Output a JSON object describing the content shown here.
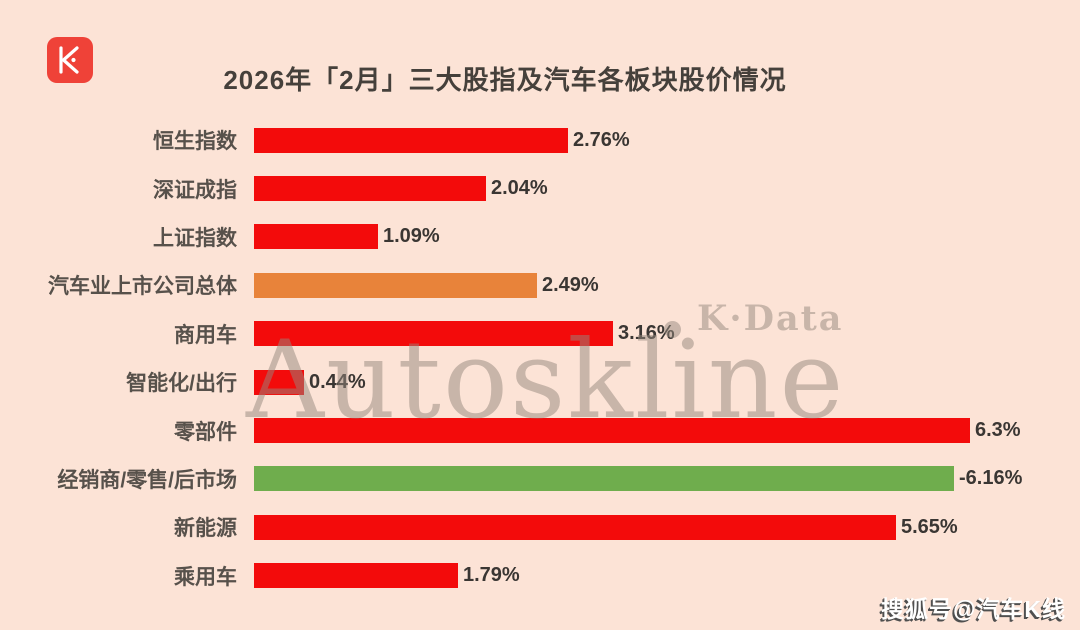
{
  "header": {
    "title": "2026年「2月」三大股指及汽车各板块股价情况"
  },
  "logo": {
    "name": "汽车K线 K logo"
  },
  "chart_data": {
    "type": "bar",
    "orientation": "horizontal",
    "title": "2026年「2月」三大股指及汽车各板块股价情况",
    "categories": [
      "恒生指数",
      "深证成指",
      "上证指数",
      "汽车业上市公司总体",
      "商用车",
      "智能化/出行",
      "零部件",
      "经销商/零售/后市场",
      "新能源",
      "乘用车"
    ],
    "values": [
      2.76,
      2.04,
      1.09,
      2.49,
      3.16,
      0.44,
      6.3,
      -6.16,
      5.65,
      1.79
    ],
    "value_labels": [
      "2.76%",
      "2.04%",
      "1.09%",
      "2.49%",
      "3.16%",
      "0.44%",
      "6.3%",
      "-6.16%",
      "5.65%",
      "1.79%"
    ],
    "bar_color_keys": [
      "red",
      "red",
      "red",
      "orange",
      "red",
      "red",
      "red",
      "green",
      "red",
      "red"
    ],
    "xlim": [
      0,
      6.5
    ],
    "grid": false,
    "legend": false,
    "bar_label_position": "end-of-bar"
  },
  "watermarks": {
    "big": "Autoskline",
    "small": "K·Data",
    "sohu": "搜狐号@汽车K线"
  },
  "colors": {
    "red": "#f30b0b",
    "orange": "#e8833a",
    "green": "#6fad4d",
    "background": "#fce3d6",
    "title_text": "#45403b",
    "label_text": "#57514b",
    "value_text": "#3a3633",
    "watermark": "#96887e",
    "logo_red": "#ef4238",
    "logo_glyph": "#ffffff",
    "sohu_text": "#ffffff",
    "sohu_shadow": "#4f4f4f"
  }
}
